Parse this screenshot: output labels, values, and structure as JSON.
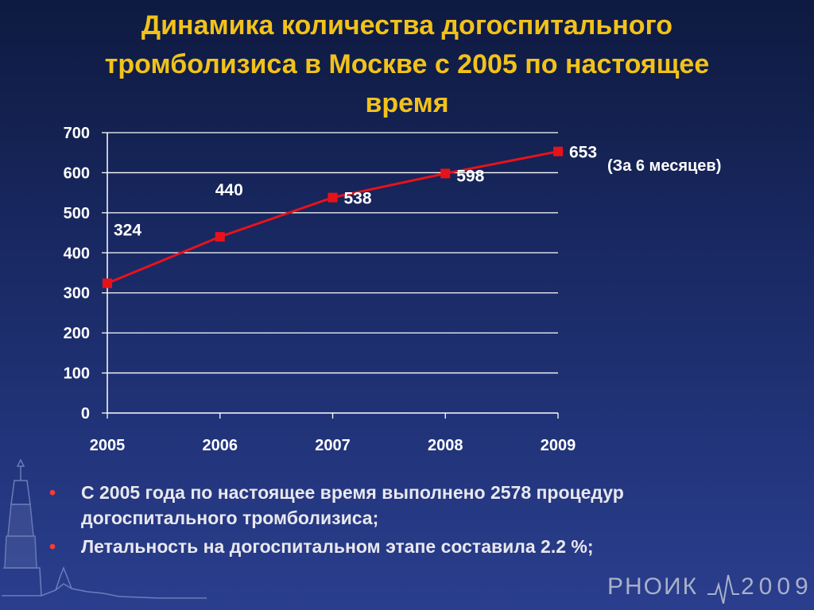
{
  "slide": {
    "title": "Динамика количества догоспитального\nтромболизиса в Москве  с 2005 по настоящее\nвремя",
    "note": "(За 6 месяцев)",
    "bullets": [
      "С 2005 года по настоящее время выполнено 2578 процедур догоспитального тромболизиса;",
      "Летальность на догоспитальном этапе составила 2.2 %;"
    ],
    "bullet_glyph": "•",
    "logo_text": "РНОИК",
    "logo_year": "2009"
  },
  "chart_data": {
    "type": "line",
    "title": "",
    "xlabel": "",
    "ylabel": "",
    "categories": [
      "2005",
      "2006",
      "2007",
      "2008",
      "2009"
    ],
    "series": [
      {
        "values": [
          324,
          440,
          538,
          598,
          653
        ],
        "color": "#e8121a"
      }
    ],
    "data_labels": [
      "324",
      "440",
      "538",
      "598",
      "653"
    ],
    "ylim": [
      0,
      700
    ],
    "yticks": [
      0,
      100,
      200,
      300,
      400,
      500,
      600,
      700
    ],
    "grid": true,
    "legend": "none"
  },
  "colors": {
    "title": "#f2c21a",
    "line": "#e8121a",
    "bullet": "#ff3b2f",
    "text": "#ffffff"
  }
}
